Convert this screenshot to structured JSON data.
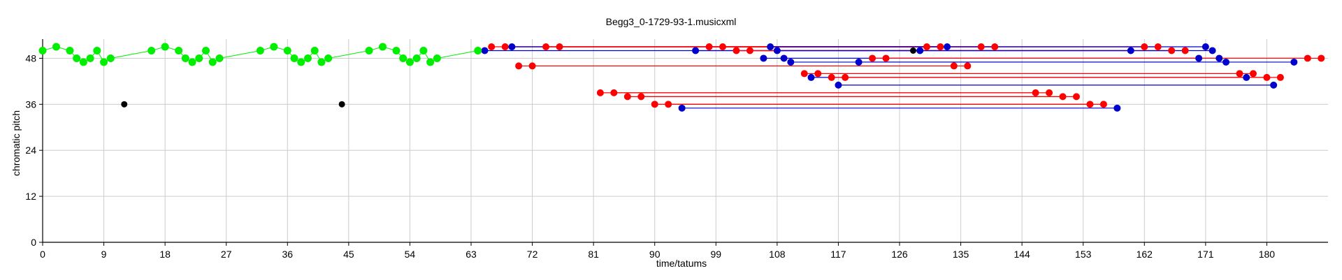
{
  "chart_data": {
    "type": "scatter",
    "title": "Begg3_0-1729-93-1.musicxml",
    "xlabel": "time/tatums",
    "ylabel": "chromatic pitch",
    "xlim": [
      0,
      189
    ],
    "ylim": [
      0,
      53
    ],
    "xticks": [
      "0",
      "9",
      "18",
      "27",
      "36",
      "45",
      "54",
      "63",
      "72",
      "81",
      "90",
      "99",
      "108",
      "117",
      "126",
      "135",
      "144",
      "153",
      "162",
      "171",
      "180"
    ],
    "yticks": [
      "0",
      "12",
      "24",
      "36",
      "48"
    ],
    "grid": true,
    "colors": {
      "green": "#00ee00",
      "red": "#ff0000",
      "blue": "#0000cc",
      "black": "#000000",
      "grid": "#cccccc"
    },
    "series": [
      {
        "color": "green",
        "points": [
          [
            0,
            50
          ],
          [
            2,
            51
          ],
          [
            4,
            50
          ],
          [
            5,
            48
          ],
          [
            6,
            47
          ],
          [
            7,
            48
          ],
          [
            8,
            50
          ],
          [
            9,
            47
          ],
          [
            10,
            48
          ],
          [
            16,
            50
          ],
          [
            18,
            51
          ],
          [
            20,
            50
          ],
          [
            21,
            48
          ],
          [
            22,
            47
          ],
          [
            23,
            48
          ],
          [
            24,
            50
          ],
          [
            25,
            47
          ],
          [
            26,
            48
          ],
          [
            32,
            50
          ],
          [
            34,
            51
          ],
          [
            36,
            50
          ],
          [
            37,
            48
          ],
          [
            38,
            47
          ],
          [
            39,
            48
          ],
          [
            40,
            50
          ],
          [
            41,
            47
          ],
          [
            42,
            48
          ],
          [
            48,
            50
          ],
          [
            50,
            51
          ],
          [
            52,
            50
          ],
          [
            53,
            48
          ],
          [
            54,
            47
          ],
          [
            55,
            48
          ],
          [
            56,
            50
          ],
          [
            57,
            47
          ],
          [
            58,
            48
          ],
          [
            64,
            50
          ]
        ]
      },
      {
        "color": "black",
        "points": [
          [
            12,
            36
          ],
          [
            44,
            36
          ],
          [
            128,
            50
          ]
        ]
      }
    ],
    "segments": [
      {
        "color": "red",
        "pitch": 51,
        "x1": 66,
        "x2": 130
      },
      {
        "color": "red",
        "pitch": 51,
        "x1": 68,
        "x2": 132
      },
      {
        "color": "blue",
        "pitch": 51,
        "x1": 69,
        "x2": 133
      },
      {
        "color": "red",
        "pitch": 51,
        "x1": 74,
        "x2": 138
      },
      {
        "color": "red",
        "pitch": 51,
        "x1": 76,
        "x2": 140
      },
      {
        "color": "red",
        "pitch": 51,
        "x1": 98,
        "x2": 162
      },
      {
        "color": "red",
        "pitch": 51,
        "x1": 100,
        "x2": 164
      },
      {
        "color": "blue",
        "pitch": 51,
        "x1": 107,
        "x2": 171
      },
      {
        "color": "blue",
        "pitch": 50,
        "x1": 65,
        "x2": 129
      },
      {
        "color": "blue",
        "pitch": 50,
        "x1": 96,
        "x2": 160
      },
      {
        "color": "red",
        "pitch": 50,
        "x1": 102,
        "x2": 166
      },
      {
        "color": "red",
        "pitch": 50,
        "x1": 104,
        "x2": 168
      },
      {
        "color": "blue",
        "pitch": 50,
        "x1": 108,
        "x2": 172
      },
      {
        "color": "blue",
        "pitch": 48,
        "x1": 106,
        "x2": 170
      },
      {
        "color": "blue",
        "pitch": 48,
        "x1": 109,
        "x2": 173
      },
      {
        "color": "red",
        "pitch": 48,
        "x1": 122,
        "x2": 186
      },
      {
        "color": "red",
        "pitch": 48,
        "x1": 124,
        "x2": 188
      },
      {
        "color": "blue",
        "pitch": 47,
        "x1": 110,
        "x2": 174
      },
      {
        "color": "blue",
        "pitch": 47,
        "x1": 120,
        "x2": 184
      },
      {
        "color": "red",
        "pitch": 46,
        "x1": 70,
        "x2": 134
      },
      {
        "color": "red",
        "pitch": 46,
        "x1": 72,
        "x2": 136
      },
      {
        "color": "red",
        "pitch": 44,
        "x1": 112,
        "x2": 176
      },
      {
        "color": "red",
        "pitch": 44,
        "x1": 114,
        "x2": 178
      },
      {
        "color": "blue",
        "pitch": 43,
        "x1": 113,
        "x2": 177
      },
      {
        "color": "red",
        "pitch": 43,
        "x1": 116,
        "x2": 180
      },
      {
        "color": "red",
        "pitch": 43,
        "x1": 118,
        "x2": 182
      },
      {
        "color": "blue",
        "pitch": 41,
        "x1": 117,
        "x2": 181
      },
      {
        "color": "red",
        "pitch": 39,
        "x1": 82,
        "x2": 146
      },
      {
        "color": "red",
        "pitch": 39,
        "x1": 84,
        "x2": 148
      },
      {
        "color": "red",
        "pitch": 38,
        "x1": 86,
        "x2": 150
      },
      {
        "color": "red",
        "pitch": 38,
        "x1": 88,
        "x2": 152
      },
      {
        "color": "red",
        "pitch": 36,
        "x1": 90,
        "x2": 154
      },
      {
        "color": "red",
        "pitch": 36,
        "x1": 92,
        "x2": 156
      },
      {
        "color": "blue",
        "pitch": 35,
        "x1": 94,
        "x2": 158
      }
    ]
  }
}
